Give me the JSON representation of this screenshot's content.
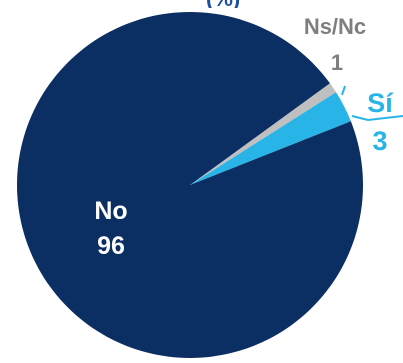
{
  "chart_data": {
    "type": "pie",
    "title": "",
    "slices": [
      {
        "label": "No",
        "value": 96,
        "color": "#0b2e63"
      },
      {
        "label": "Sí",
        "value": 3,
        "color": "#28b4e6"
      },
      {
        "label": "Ns/Nc",
        "value": 1,
        "color": "#bfbfbf"
      }
    ],
    "label_colors": {
      "inside": "#ffffff",
      "Sí": "#28b4e6",
      "Ns/Nc": "#7f7f7f"
    },
    "clipped_title_fragment": "(%)"
  }
}
